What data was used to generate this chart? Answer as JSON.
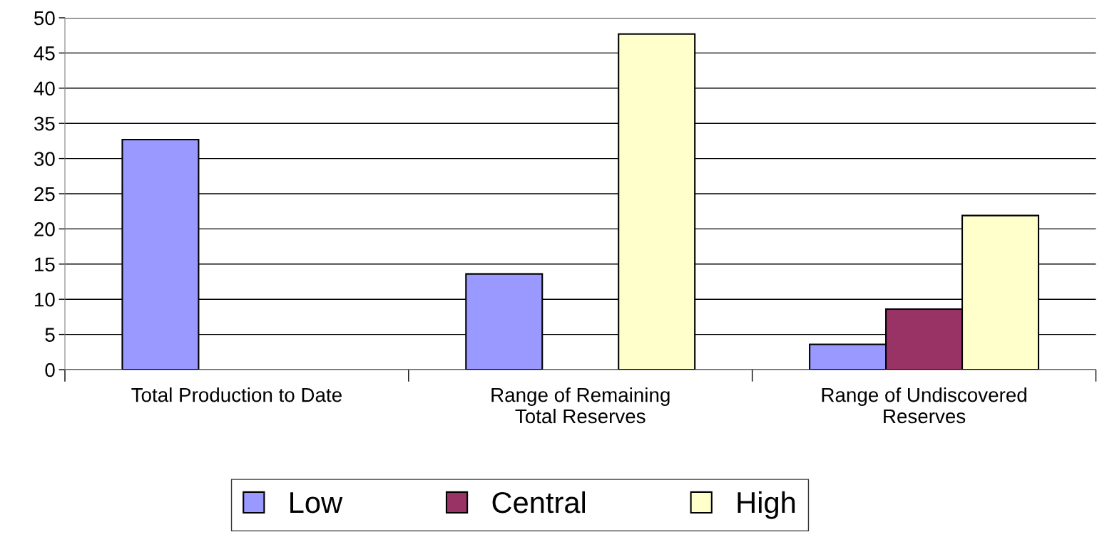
{
  "chart_data": {
    "type": "bar",
    "categories": [
      "Total Production to Date",
      "Range of Remaining\nTotal Reserves",
      "Range of Undiscovered\nReserves"
    ],
    "series": [
      {
        "name": "Low",
        "color": "#9999ff",
        "values": [
          32.7,
          13.6,
          3.6
        ]
      },
      {
        "name": "Central",
        "color": "#993366",
        "values": [
          null,
          null,
          8.6
        ]
      },
      {
        "name": "High",
        "color": "#ffffcc",
        "values": [
          null,
          47.7,
          21.9
        ]
      }
    ],
    "ylim": [
      0,
      50
    ],
    "yticks": [
      0,
      5,
      10,
      15,
      20,
      25,
      30,
      35,
      40,
      45,
      50
    ],
    "grid": "y",
    "legend": "bottom"
  }
}
